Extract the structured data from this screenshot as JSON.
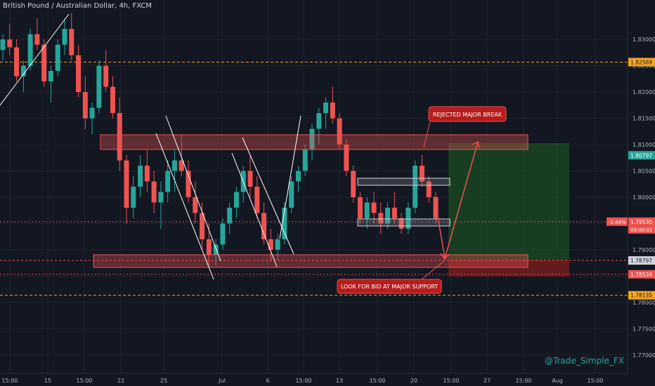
{
  "header": {
    "title": "British Pound / Australian Dollar, 4h, FXCM"
  },
  "watermark": "@Trade_Simple_FX",
  "colors": {
    "background": "#131722",
    "up": "#26a69a",
    "down": "#ef5350",
    "grid": "#1e222d",
    "zone": "#ef5350"
  },
  "chart_data": {
    "type": "candlestick",
    "title": "British Pound / Australian Dollar, 4h, FXCM",
    "ylim": [
      1.7665,
      1.8375
    ],
    "y_ticks": [
      "1.83000",
      "1.82500",
      "1.82000",
      "1.81500",
      "1.81000",
      "1.80500",
      "1.80000",
      "1.79500",
      "1.79000",
      "1.78500",
      "1.78000",
      "1.77500",
      "1.77000"
    ],
    "x_ticks": [
      "15:00",
      "15",
      "15:00",
      "22",
      "25",
      "Jul",
      "6",
      "15:00",
      "13",
      "15:00",
      "20",
      "15:00",
      "27",
      "15:00",
      "Aug",
      "15:00"
    ],
    "price_labels": [
      {
        "text": "1.82569",
        "value": 1.82569,
        "style": "orange-dashed"
      },
      {
        "text": "1.80797",
        "value": 1.80797,
        "style": "green"
      },
      {
        "text": "1.79535",
        "value": 1.79535,
        "style": "red",
        "extra": "03:00:01",
        "pct": "-2.04%"
      },
      {
        "text": "1.78797",
        "value": 1.78797,
        "style": "grey"
      },
      {
        "text": "1.78534",
        "value": 1.78534,
        "style": "red"
      },
      {
        "text": "1.78135",
        "value": 1.78135,
        "style": "orange-dashed"
      }
    ],
    "annotations": [
      {
        "text": "REJECTED MAJOR BREAK"
      },
      {
        "text": "LOOK FOR BID AT MAJOR SUPPORT"
      }
    ],
    "zones": [
      {
        "name": "major resistance",
        "low": 1.807,
        "high": 1.8095
      },
      {
        "name": "major support",
        "low": 1.7875,
        "high": 1.7895
      }
    ],
    "series": [
      {
        "values": [
          [
            1.828,
            1.831,
            1.826,
            1.83
          ],
          [
            1.83,
            1.833,
            1.827,
            1.8285
          ],
          [
            1.8285,
            1.83,
            1.822,
            1.823
          ],
          [
            1.823,
            1.826,
            1.82,
            1.825
          ],
          [
            1.825,
            1.832,
            1.824,
            1.831
          ],
          [
            1.831,
            1.834,
            1.828,
            1.829
          ],
          [
            1.829,
            1.83,
            1.821,
            1.822
          ],
          [
            1.822,
            1.825,
            1.818,
            1.824
          ],
          [
            1.824,
            1.83,
            1.823,
            1.829
          ],
          [
            1.829,
            1.834,
            1.827,
            1.832
          ],
          [
            1.832,
            1.835,
            1.826,
            1.827
          ],
          [
            1.827,
            1.829,
            1.819,
            1.82
          ],
          [
            1.82,
            1.823,
            1.813,
            1.815
          ],
          [
            1.815,
            1.818,
            1.812,
            1.817
          ],
          [
            1.817,
            1.826,
            1.816,
            1.825
          ],
          [
            1.825,
            1.828,
            1.82,
            1.821
          ],
          [
            1.821,
            1.823,
            1.815,
            1.816
          ],
          [
            1.816,
            1.819,
            1.805,
            1.807
          ],
          [
            1.807,
            1.808,
            1.795,
            1.798
          ],
          [
            1.798,
            1.804,
            1.796,
            1.802
          ],
          [
            1.802,
            1.808,
            1.8,
            1.806
          ],
          [
            1.806,
            1.809,
            1.801,
            1.803
          ],
          [
            1.803,
            1.805,
            1.797,
            1.799
          ],
          [
            1.799,
            1.803,
            1.794,
            1.801
          ],
          [
            1.801,
            1.807,
            1.799,
            1.805
          ],
          [
            1.805,
            1.809,
            1.801,
            1.807
          ],
          [
            1.807,
            1.812,
            1.804,
            1.805
          ],
          [
            1.805,
            1.807,
            1.799,
            1.8
          ],
          [
            1.8,
            1.803,
            1.795,
            1.797
          ],
          [
            1.797,
            1.799,
            1.79,
            1.792
          ],
          [
            1.792,
            1.795,
            1.787,
            1.789
          ],
          [
            1.789,
            1.792,
            1.787,
            1.791
          ],
          [
            1.791,
            1.796,
            1.79,
            1.795
          ],
          [
            1.795,
            1.799,
            1.793,
            1.798
          ],
          [
            1.798,
            1.802,
            1.796,
            1.801
          ],
          [
            1.801,
            1.806,
            1.799,
            1.805
          ],
          [
            1.805,
            1.808,
            1.8,
            1.802
          ],
          [
            1.802,
            1.804,
            1.796,
            1.797
          ],
          [
            1.797,
            1.799,
            1.791,
            1.792
          ],
          [
            1.792,
            1.794,
            1.788,
            1.79
          ],
          [
            1.79,
            1.793,
            1.788,
            1.792
          ],
          [
            1.792,
            1.799,
            1.791,
            1.798
          ],
          [
            1.798,
            1.804,
            1.797,
            1.803
          ],
          [
            1.803,
            1.806,
            1.801,
            1.805
          ],
          [
            1.805,
            1.81,
            1.804,
            1.809
          ],
          [
            1.809,
            1.814,
            1.807,
            1.813
          ],
          [
            1.813,
            1.817,
            1.81,
            1.816
          ],
          [
            1.816,
            1.819,
            1.813,
            1.818
          ],
          [
            1.818,
            1.821,
            1.814,
            1.815
          ],
          [
            1.815,
            1.816,
            1.809,
            1.81
          ],
          [
            1.81,
            1.811,
            1.804,
            1.805
          ],
          [
            1.805,
            1.806,
            1.799,
            1.8
          ],
          [
            1.8,
            1.801,
            1.795,
            1.796
          ],
          [
            1.796,
            1.8,
            1.794,
            1.799
          ],
          [
            1.799,
            1.801,
            1.795,
            1.797
          ],
          [
            1.797,
            1.799,
            1.793,
            1.795
          ],
          [
            1.795,
            1.799,
            1.794,
            1.798
          ],
          [
            1.798,
            1.801,
            1.795,
            1.796
          ],
          [
            1.796,
            1.797,
            1.793,
            1.794
          ],
          [
            1.794,
            1.799,
            1.793,
            1.798
          ],
          [
            1.798,
            1.807,
            1.797,
            1.806
          ],
          [
            1.806,
            1.808,
            1.802,
            1.803
          ],
          [
            1.803,
            1.804,
            1.799,
            1.8
          ],
          [
            1.8,
            1.801,
            1.795,
            1.796
          ]
        ]
      }
    ]
  }
}
